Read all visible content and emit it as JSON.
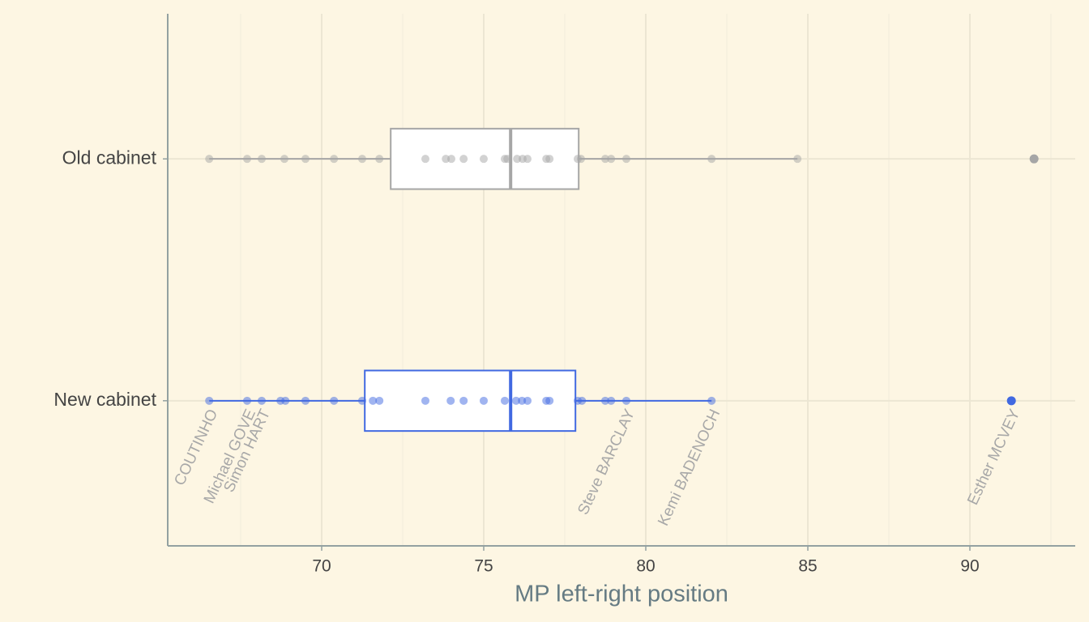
{
  "chart_data": {
    "type": "boxplot",
    "xlabel": "MP left-right position",
    "categories": [
      "Old cabinet",
      "New cabinet"
    ],
    "xlim": [
      65.25,
      93.25
    ],
    "xticks": [
      70,
      75,
      80,
      85,
      90
    ],
    "xminor": [
      67.5,
      72.5,
      77.5,
      82.5,
      87.5,
      92.5
    ],
    "grid": true,
    "boxes": [
      {
        "color": "#a6a6a6",
        "whisker_low": 66.53,
        "q1": 72.13,
        "median": 75.83,
        "q3": 77.93,
        "whisker_high": 84.68,
        "outliers": [
          91.98
        ],
        "points": [
          66.53,
          67.7,
          68.15,
          68.85,
          69.5,
          70.38,
          71.25,
          71.78,
          73.2,
          73.83,
          74.0,
          74.38,
          75.0,
          75.65,
          75.73,
          76.03,
          76.2,
          76.35,
          76.93,
          77.03,
          77.9,
          78.0,
          78.75,
          78.93,
          79.4,
          82.03,
          84.68,
          91.98
        ]
      },
      {
        "color": "#4169e1",
        "whisker_low": 66.53,
        "q1": 71.33,
        "median": 75.83,
        "q3": 77.83,
        "whisker_high": 82.03,
        "outliers": [
          91.28
        ],
        "points": [
          66.53,
          67.7,
          68.15,
          68.73,
          68.88,
          69.5,
          70.38,
          71.25,
          71.58,
          71.78,
          73.2,
          73.98,
          74.38,
          75.0,
          75.65,
          76.0,
          76.18,
          76.35,
          76.93,
          77.03,
          77.9,
          78.03,
          78.75,
          78.93,
          79.4,
          82.03,
          91.28
        ]
      }
    ],
    "annotations": [
      {
        "text": "COUTINHO",
        "x": 66.53
      },
      {
        "text": "Michael GOVE",
        "x": 67.7
      },
      {
        "text": "Simon HART",
        "x": 68.15
      },
      {
        "text": "Steve BARCLAY",
        "x": 79.4
      },
      {
        "text": "Kemi BADENOCH",
        "x": 82.03
      },
      {
        "text": "Esther MCVEY",
        "x": 91.28
      }
    ]
  }
}
